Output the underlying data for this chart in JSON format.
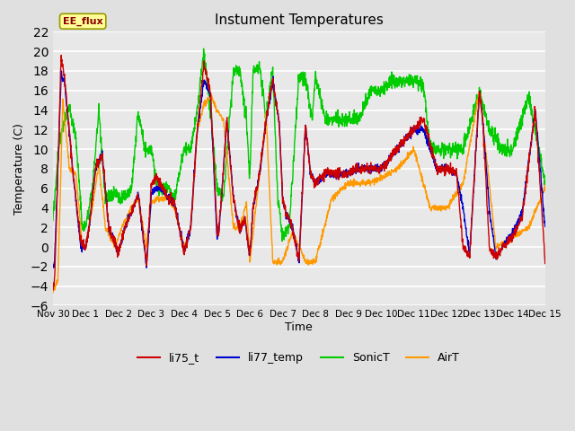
{
  "title": "Instument Temperatures",
  "xlabel": "Time",
  "ylabel": "Temperature (C)",
  "ylim": [
    -6,
    22
  ],
  "yticks": [
    -6,
    -4,
    -2,
    0,
    2,
    4,
    6,
    8,
    10,
    12,
    14,
    16,
    18,
    20,
    22
  ],
  "background_color": "#e0e0e0",
  "plot_bg_color": "#e8e8e8",
  "grid_color": "white",
  "legend_label": "EE_flux",
  "legend_facecolor": "#ffff99",
  "legend_edgecolor": "#999900",
  "line_colors": {
    "li75_t": "#cc0000",
    "li77_temp": "#0000cc",
    "SonicT": "#00cc00",
    "AirT": "#ff9900"
  },
  "line_labels": [
    "li75_t",
    "li77_temp",
    "SonicT",
    "AirT"
  ],
  "x_start": 0,
  "x_end": 15,
  "xtick_positions": [
    0,
    1,
    2,
    3,
    4,
    5,
    6,
    7,
    8,
    9,
    10,
    11,
    12,
    13,
    14,
    15
  ],
  "xtick_labels": [
    "Nov 30",
    "Dec 1",
    "Dec 2",
    "Dec 3",
    "Dec 4",
    "Dec 5",
    "Dec 6",
    "Dec 7",
    "Dec 8",
    "Dec 9",
    "Dec 10",
    "Dec 11",
    "Dec 12",
    "Dec 13",
    "Dec 14",
    "Dec 15"
  ],
  "figsize": [
    6.4,
    4.8
  ],
  "dpi": 100
}
